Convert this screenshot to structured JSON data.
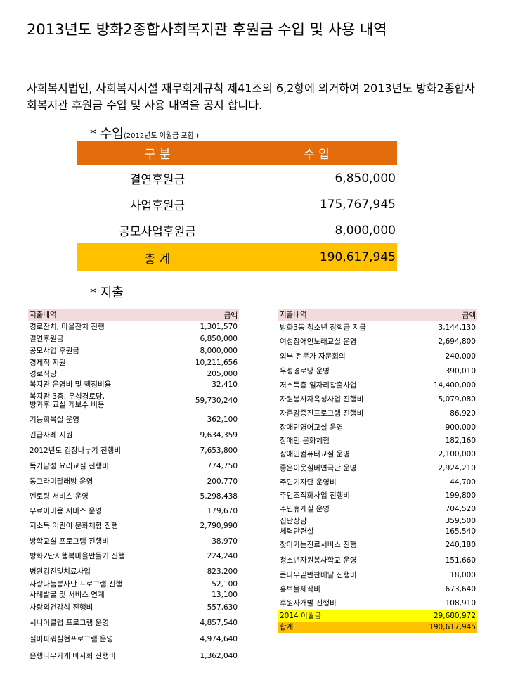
{
  "title": "2013년도 방화2종합사회복지관 후원금 수입 및 사용 내역",
  "intro": "사회복지법인, 사회복지시설 재무회계규칙 제41조의 6,2항에 의거하여 2013년도 방화2종합사회복지관 후원금 수입 및 사용 내역을 공지 합니다.",
  "income": {
    "heading": "* 수입",
    "note": "(2012년도 이월금 포함 )",
    "header": {
      "col1": "구 분",
      "col2": "수 입"
    },
    "rows": [
      {
        "label": "결연후원금",
        "amount": "6,850,000"
      },
      {
        "label": "사업후원금",
        "amount": "175,767,945"
      },
      {
        "label": "공모사업후원금",
        "amount": "8,000,000"
      }
    ],
    "total": {
      "label": "총 계",
      "amount": "190,617,945"
    }
  },
  "spending": {
    "heading": "* 지출",
    "left": {
      "header": {
        "label": "지출내역",
        "amount": "금액"
      },
      "rows": [
        {
          "label": "경로잔치, 마을잔치 진행",
          "amount": "1,301,570"
        },
        {
          "label": "결연후원금",
          "amount": "6,850,000"
        },
        {
          "label": "공모사업 후원금",
          "amount": "8,000,000"
        },
        {
          "label": "경제적 지원",
          "amount": "10,211,656"
        },
        {
          "label": "경로식당",
          "amount": "205,000"
        },
        {
          "label": "복지관 운영비 및 행정비용",
          "amount": "32,410"
        },
        {
          "label": "복지관 3층, 우성경로당,\n방과후 교실 개보수 비용",
          "amount": "59,730,240"
        },
        {
          "label": "기능회복실 운영",
          "amount": "362,100"
        },
        {
          "label": "긴급사례 지원",
          "amount": "9,634,359"
        },
        {
          "label": "2012년도 김장나누기 진행비",
          "amount": "7,653,800"
        },
        {
          "label": "독거남성 요리교실 진행비",
          "amount": "774,750"
        },
        {
          "label": "동그라미팔래방 운영",
          "amount": "200,770"
        },
        {
          "label": "멘토링 서비스 운영",
          "amount": "5,298,438"
        },
        {
          "label": "무료이미용 서비스 운영",
          "amount": "179,670"
        },
        {
          "label": "저소득 어린이 문화체험 진행",
          "amount": "2,790,990"
        },
        {
          "label": "방학교실 프로그램 진행비",
          "amount": "38,970"
        },
        {
          "label": "방화2단지행복마을만들기 진행",
          "amount": "224,240"
        },
        {
          "label": "병원검진및치료사업",
          "amount": "823,200"
        },
        {
          "label": "사랑나눔봉사단 프로그램 진행",
          "amount": "52,100"
        },
        {
          "label": "사례발굴 및 서비스 연계",
          "amount": "13,100"
        },
        {
          "label": "사랑의건강식 진행비",
          "amount": "557,630"
        },
        {
          "label": "시니어클럽 프로그램 운영",
          "amount": "4,857,540"
        },
        {
          "label": "실버파워실현프로그램 운영",
          "amount": "4,974,640"
        },
        {
          "label": "은행나무가게 바자회 진행비",
          "amount": "1,362,040"
        }
      ]
    },
    "right": {
      "header": {
        "label": "지출내역",
        "amount": "금액"
      },
      "rows": [
        {
          "label": "방화3동 청소년 장학금 지급",
          "amount": "3,144,130"
        },
        {
          "label": "여성장애인노래교실 운영",
          "amount": "2,694,800"
        },
        {
          "label": "외부 전문가 자문회의",
          "amount": "240,000"
        },
        {
          "label": "우성경로당 운영",
          "amount": "390,010"
        },
        {
          "label": "저소득층 일자리창출사업",
          "amount": "14,400,000"
        },
        {
          "label": "자원봉사자육성사업 진행비",
          "amount": "5,079,080"
        },
        {
          "label": "자존감증진프로그램 진행비",
          "amount": "86,920"
        },
        {
          "label": "장애인영어교실 운영",
          "amount": "900,000"
        },
        {
          "label": "장애인 문화체험",
          "amount": "182,160"
        },
        {
          "label": "장애인컴퓨터교실 운영",
          "amount": "2,100,000"
        },
        {
          "label": "좋은이웃실버연극단 운영",
          "amount": "2,924,210"
        },
        {
          "label": "주민기자단 운영비",
          "amount": "44,700"
        },
        {
          "label": "주민조직화사업 진행비",
          "amount": "199,800"
        },
        {
          "label": "주민휴게실 운영",
          "amount": "704,520"
        },
        {
          "label": "집단상담",
          "amount": "359,500"
        },
        {
          "label": "체력단련실",
          "amount": "165,540"
        },
        {
          "label": "찾아가는진료서비스 진행",
          "amount": "240,180"
        },
        {
          "label": "청소년자원봉사학교 운영",
          "amount": "151,660"
        },
        {
          "label": "큰나무밑반찬배달 진행비",
          "amount": "18,000"
        },
        {
          "label": "홍보물제작비",
          "amount": "673,640"
        },
        {
          "label": "후원자개발 진행비",
          "amount": "108,910"
        }
      ],
      "carryover": {
        "label": "2014 이월금",
        "amount": "29,680,972"
      },
      "total": {
        "label": "합계",
        "amount": "190,617,945"
      }
    }
  }
}
